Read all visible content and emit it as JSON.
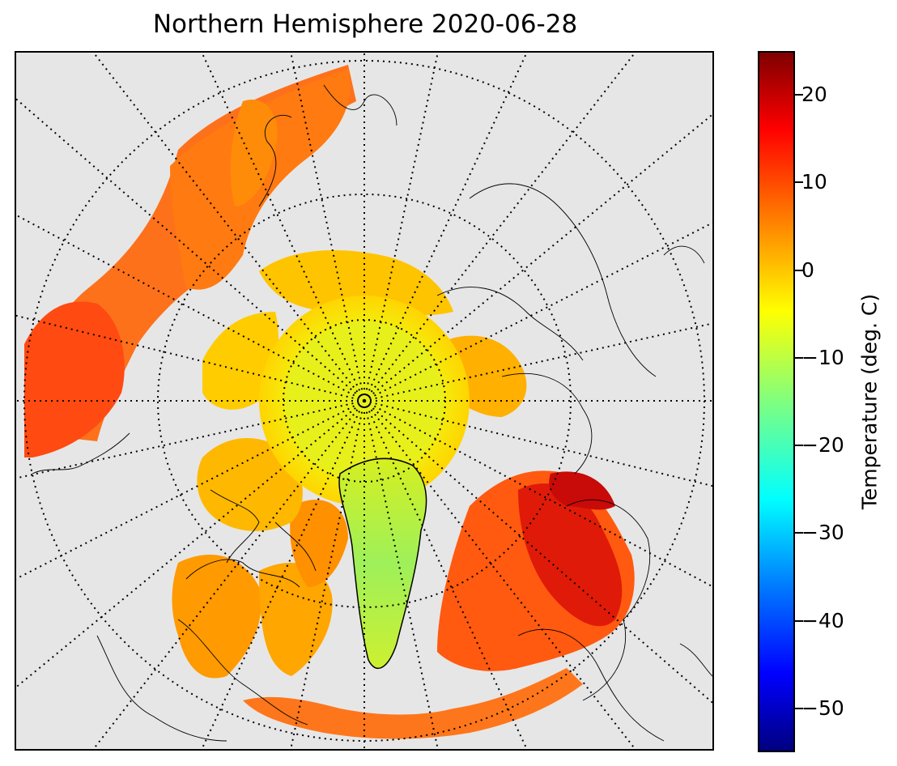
{
  "title": "Northern Hemisphere 2020-06-28",
  "colorbar": {
    "label": "Temperature (deg. C)",
    "vmin": -55,
    "vmax": 25,
    "colormap": "jet",
    "ticks": [
      {
        "value": 20,
        "label": "20"
      },
      {
        "value": 10,
        "label": "10"
      },
      {
        "value": 0,
        "label": "0"
      },
      {
        "value": -10,
        "label": "−10"
      },
      {
        "value": -20,
        "label": "−20"
      },
      {
        "value": -30,
        "label": "−30"
      },
      {
        "value": -40,
        "label": "−40"
      },
      {
        "value": -50,
        "label": "−50"
      }
    ]
  },
  "map": {
    "projection": "north polar stereographic",
    "background_color": "#e6e6e6",
    "gridlines": "dotted",
    "coastlines": "black"
  }
}
